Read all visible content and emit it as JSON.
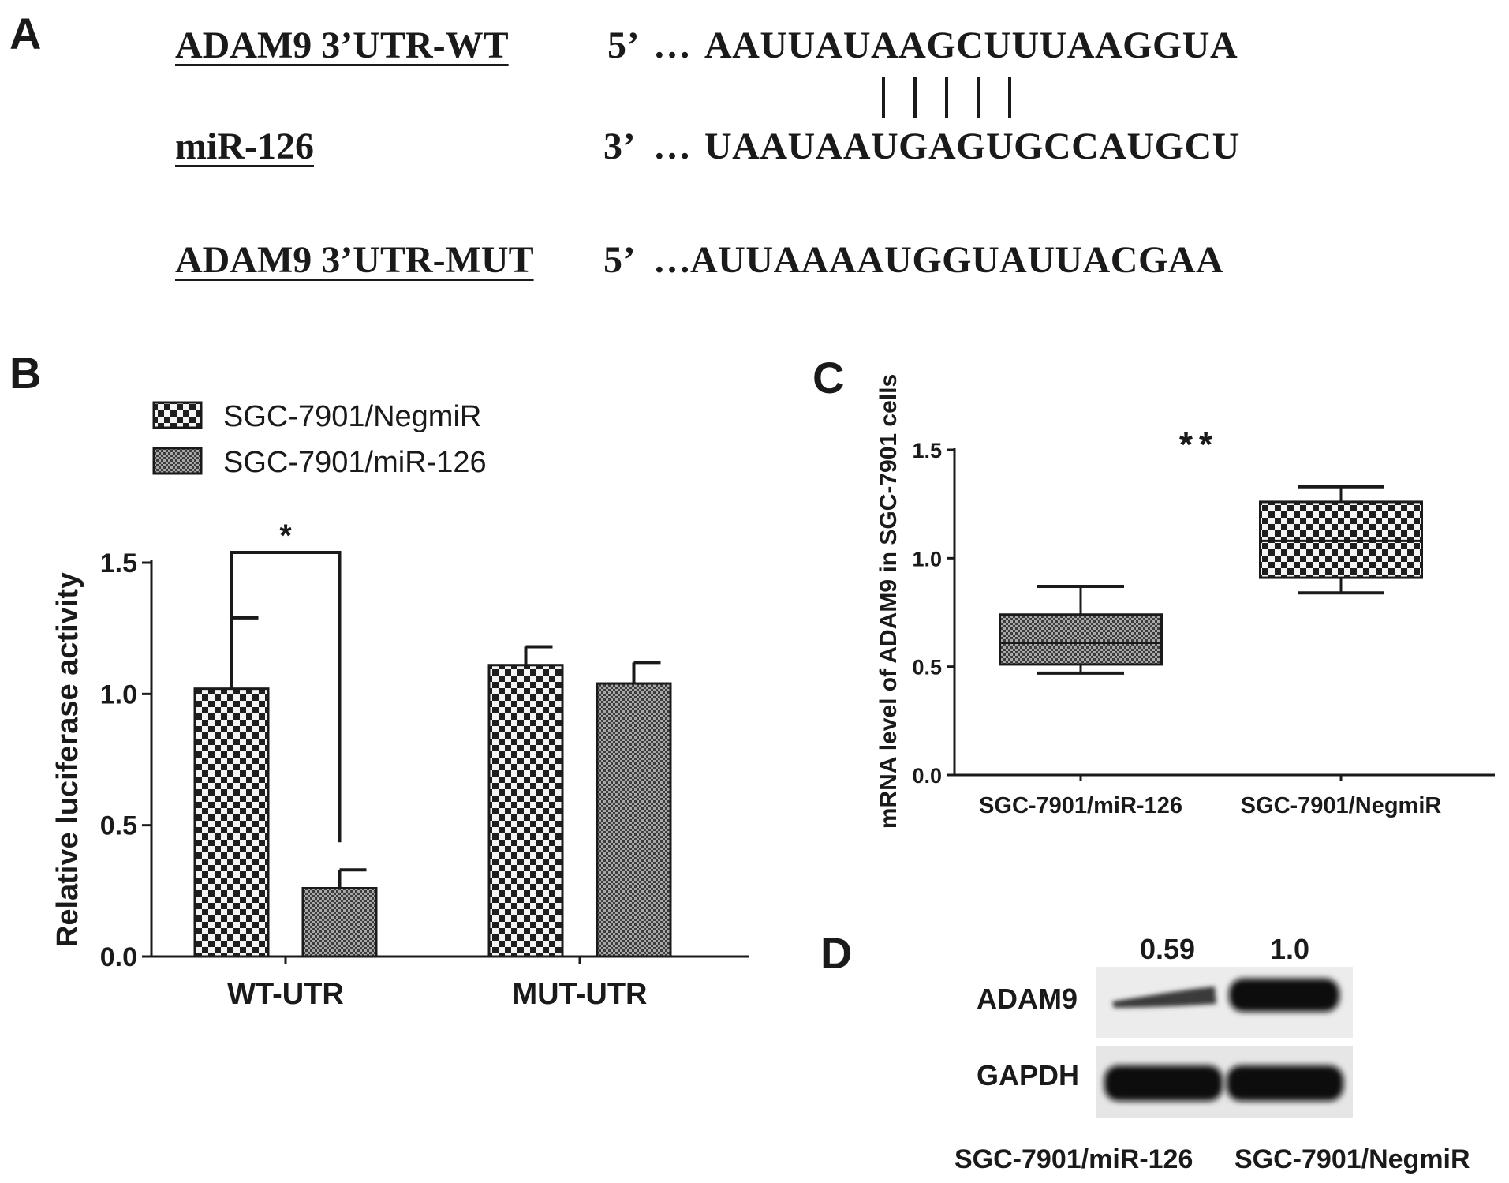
{
  "panel_a": {
    "letter": "A",
    "rows": [
      {
        "label": "ADAM9 3’UTR-WT",
        "end": "5’",
        "dots": "…",
        "sequence": "AAUUAUAAGCUUUAAGGUA"
      },
      {
        "label": "miR-126",
        "end": "3’",
        "dots": "…",
        "sequence": "UAAUAAUGAGUGCCAUGCU"
      },
      {
        "label": "ADAM9 3’UTR-MUT",
        "end": "5’",
        "dots": "…",
        "sequence": "AUUAAAAUGGUAUUACGAA"
      }
    ],
    "pairing_marks": 5
  },
  "panel_b": {
    "letter": "B"
  },
  "panel_c": {
    "letter": "C"
  },
  "panel_d": {
    "letter": "D",
    "ratios": [
      "0.59",
      "1.0"
    ],
    "bands": [
      "ADAM9",
      "GAPDH"
    ],
    "lanes": [
      "SGC-7901/miR-126",
      "SGC-7901/NegmiR"
    ]
  },
  "colors": {
    "ink": "#1a1a1a",
    "fill_neg": "#d8d8d8",
    "fill_mir": "#b8b8b8"
  },
  "chart_data": [
    {
      "type": "bar",
      "panel": "B",
      "categories": [
        "WT-UTR",
        "MUT-UTR"
      ],
      "series": [
        {
          "name": "SGC-7901/NegmiR",
          "values": [
            1.02,
            1.11
          ],
          "errors": [
            0.27,
            0.07
          ]
        },
        {
          "name": "SGC-7901/miR-126",
          "values": [
            0.26,
            1.04
          ],
          "errors": [
            0.07,
            0.08
          ]
        }
      ],
      "ylabel": "Relative luciferase activity",
      "ylim": [
        0,
        1.5
      ],
      "yticks": [
        "0.0",
        "0.5",
        "1.0",
        "1.5"
      ],
      "legend": "top-left",
      "significance": {
        "label": "*",
        "between": [
          "SGC-7901/NegmiR",
          "SGC-7901/miR-126"
        ],
        "category": "WT-UTR"
      }
    },
    {
      "type": "box",
      "panel": "C",
      "categories": [
        "SGC-7901/miR-126",
        "SGC-7901/NegmiR"
      ],
      "boxes": [
        {
          "min": 0.47,
          "q1": 0.51,
          "median": 0.61,
          "q3": 0.74,
          "max": 0.87
        },
        {
          "min": 0.84,
          "q1": 0.91,
          "median": 1.08,
          "q3": 1.26,
          "max": 1.33
        }
      ],
      "ylabel": "mRNA level of ADAM9 in SGC-7901 cells",
      "ylim": [
        0,
        1.5
      ],
      "yticks": [
        "0.0",
        "0.5",
        "1.0",
        "1.5"
      ],
      "significance": "**"
    }
  ]
}
